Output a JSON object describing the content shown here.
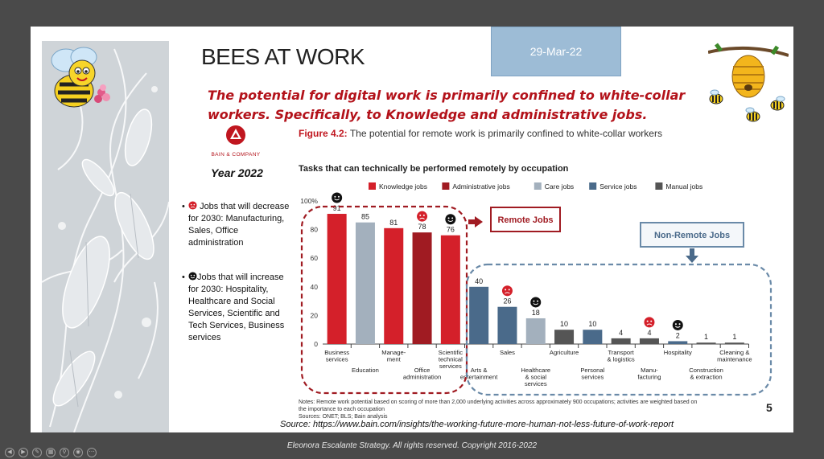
{
  "slide": {
    "title": "BEES AT WORK",
    "date": "29-Mar-22",
    "headline": "The potential for digital work is primarily confined to white-collar workers. Specifically, to Knowledge and administrative jobs.",
    "bain_logo_text": "BAIN & COMPANY",
    "year": "Year 2022",
    "bullet_decrease": "Jobs that will decrease for 2030: Manufacturing, Sales, Office administration",
    "bullet_increase": "Jobs that will increase for 2030: Hospitality, Healthcare and Social Services, Scientific and Tech Services, Business services",
    "figure_number": "Figure 4.2:",
    "figure_caption": "The potential for remote work is primarily confined to white-collar workers",
    "page_number": "5",
    "source": "Source: https://www.bain.com/insights/the-working-future-more-human-not-less-future-of-work-report",
    "notes_line1": "Notes: Remote work potential based on scoring of more than 2,000 underlying activities across approximately 900 occupations; activities are weighted based on",
    "notes_line2": "the importance to each occupation",
    "notes_line3": "Sources: ONET; BLS; Bain analysis"
  },
  "footer": {
    "copyright": "Eleonora Escalante Strategy. All rights reserved. Copyright 2016-2022"
  },
  "colors": {
    "knowledge": "#d4202a",
    "administrative": "#a01b22",
    "care": "#a3b0bd",
    "service": "#4a6a8a",
    "manual": "#555555",
    "accent_red": "#b3121a",
    "dashed_blue": "#6a8aa8"
  },
  "chart_data": {
    "type": "bar",
    "title": "Tasks that can technically be performed remotely by occupation",
    "ylim": [
      0,
      100
    ],
    "yticks": [
      "0",
      "20",
      "40",
      "60",
      "80",
      "100%"
    ],
    "legend": [
      {
        "name": "Knowledge jobs",
        "key": "knowledge"
      },
      {
        "name": "Administrative jobs",
        "key": "administrative"
      },
      {
        "name": "Care jobs",
        "key": "care"
      },
      {
        "name": "Service jobs",
        "key": "service"
      },
      {
        "name": "Manual jobs",
        "key": "manual"
      }
    ],
    "legend_placement": "top",
    "bars": [
      {
        "label": "Business services",
        "label_lines": [
          "Business",
          "services"
        ],
        "row": 0,
        "value": 91,
        "value_text": "91",
        "group": "knowledge",
        "icon": "smile"
      },
      {
        "label": "Education",
        "label_lines": [
          "Education"
        ],
        "row": 1,
        "value": 85,
        "value_text": "85",
        "group": "care",
        "icon": ""
      },
      {
        "label": "Management",
        "label_lines": [
          "Manage-",
          "ment"
        ],
        "row": 0,
        "value": 81,
        "value_text": "81",
        "group": "knowledge",
        "icon": ""
      },
      {
        "label": "Office administration",
        "label_lines": [
          "Office",
          "administration"
        ],
        "row": 1,
        "value": 78,
        "value_text": "78",
        "group": "administrative",
        "icon": "sad"
      },
      {
        "label": "Scientific technical services",
        "label_lines": [
          "Scientific",
          "technical",
          "services"
        ],
        "row": 0,
        "value": 76,
        "value_text": "76",
        "group": "knowledge",
        "icon": "smile"
      },
      {
        "label": "Arts & entertainment",
        "label_lines": [
          "Arts &",
          "entertainment"
        ],
        "row": 1,
        "value": 40,
        "value_text": "40",
        "group": "service",
        "icon": ""
      },
      {
        "label": "Sales",
        "label_lines": [
          "Sales"
        ],
        "row": 0,
        "value": 26,
        "value_text": "26",
        "group": "service",
        "icon": "sad"
      },
      {
        "label": "Healthcare & social services",
        "label_lines": [
          "Healthcare",
          "& social",
          "services"
        ],
        "row": 1,
        "value": 18,
        "value_text": "18",
        "group": "care",
        "icon": "smile"
      },
      {
        "label": "Agriculture",
        "label_lines": [
          "Agriculture"
        ],
        "row": 0,
        "value": 10,
        "value_text": "10",
        "group": "manual",
        "icon": ""
      },
      {
        "label": "Personal services",
        "label_lines": [
          "Personal",
          "services"
        ],
        "row": 1,
        "value": 10,
        "value_text": "10",
        "group": "service",
        "icon": ""
      },
      {
        "label": "Transport & logistics",
        "label_lines": [
          "Transport",
          "& logistics"
        ],
        "row": 0,
        "value": 4,
        "value_text": "4",
        "group": "manual",
        "icon": ""
      },
      {
        "label": "Manufacturing",
        "label_lines": [
          "Manu-",
          "facturing"
        ],
        "row": 1,
        "value": 4,
        "value_text": "4",
        "group": "manual",
        "icon": "sad"
      },
      {
        "label": "Hospitality",
        "label_lines": [
          "Hospitality"
        ],
        "row": 0,
        "value": 2,
        "value_text": "2",
        "group": "service",
        "icon": "smile"
      },
      {
        "label": "Construction & extraction",
        "label_lines": [
          "Construction",
          "& extraction"
        ],
        "row": 1,
        "value": 1,
        "value_text": "1",
        "group": "manual",
        "icon": ""
      },
      {
        "label": "Cleaning & maintenance",
        "label_lines": [
          "Cleaning &",
          "maintenance"
        ],
        "row": 0,
        "value": 1,
        "value_text": "1",
        "group": "manual",
        "icon": ""
      }
    ],
    "annotations": {
      "remote": "Remote Jobs",
      "non_remote": "Non-Remote Jobs"
    }
  }
}
